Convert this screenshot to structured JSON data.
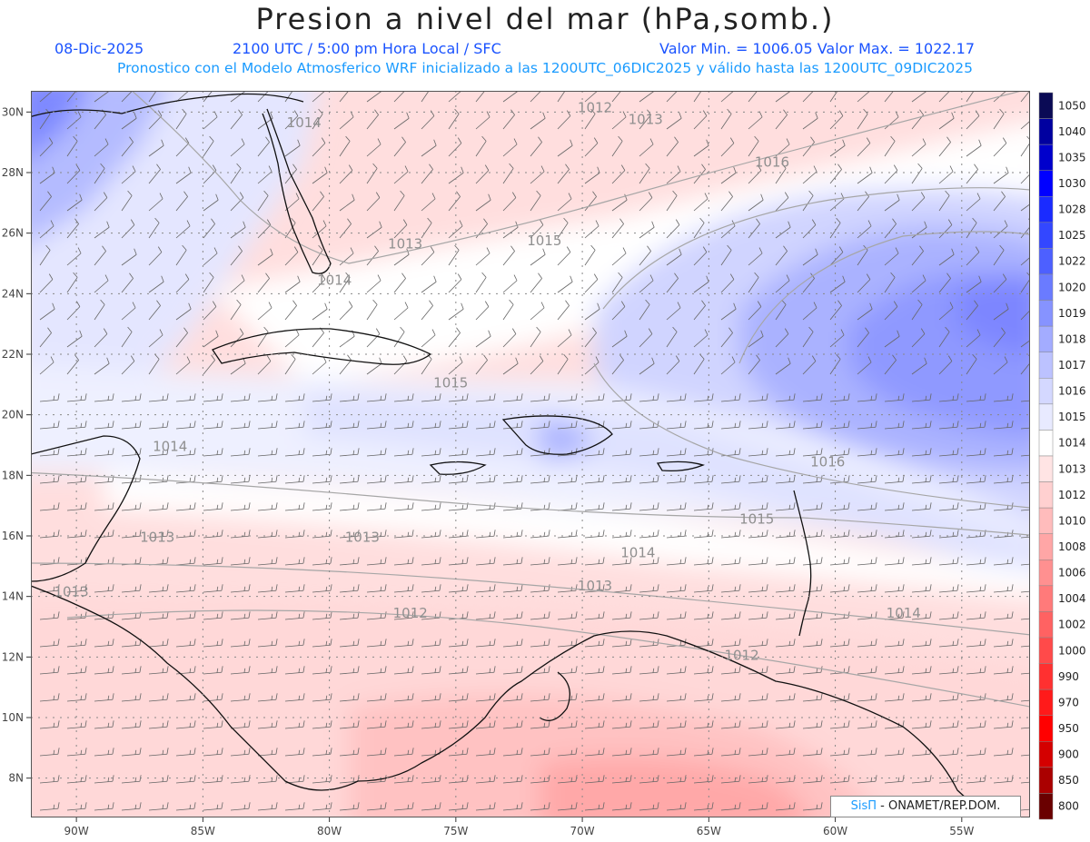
{
  "header": {
    "title": "Presion a nivel del mar (hPa,somb.)",
    "date": "08-Dic-2025",
    "time": "2100 UTC / 5:00 pm Hora Local / SFC",
    "minmax": "Valor Min. = 1006.05  Valor Max. = 1022.17",
    "model_note": "Pronostico con el Modelo Atmosferico WRF inicializado a las 1200UTC_06DIC2025 y válido hasta las  1200UTC_09DIC2025"
  },
  "axes": {
    "lat_labels": [
      "30N",
      "28N",
      "26N",
      "24N",
      "22N",
      "20N",
      "18N",
      "16N",
      "14N",
      "12N",
      "10N",
      "8N"
    ],
    "lon_labels": [
      "90W",
      "85W",
      "80W",
      "75W",
      "70W",
      "65W",
      "60W",
      "55W"
    ],
    "lat_range": [
      6.7,
      30.7
    ],
    "lon_range": [
      -91.8,
      -52.3
    ]
  },
  "isobars": [
    {
      "label": "1014",
      "lat": 29.5,
      "lon": -81.0
    },
    {
      "label": "1012",
      "lat": 30.0,
      "lon": -69.5
    },
    {
      "label": "1013",
      "lat": 29.6,
      "lon": -67.5
    },
    {
      "label": "1016",
      "lat": 28.2,
      "lon": -62.5
    },
    {
      "label": "1013",
      "lat": 25.5,
      "lon": -77.0
    },
    {
      "label": "1015",
      "lat": 25.6,
      "lon": -71.5
    },
    {
      "label": "1014",
      "lat": 24.3,
      "lon": -79.8
    },
    {
      "label": "1015",
      "lat": 20.9,
      "lon": -75.2
    },
    {
      "label": "1014",
      "lat": 18.8,
      "lon": -86.3
    },
    {
      "label": "1016",
      "lat": 18.3,
      "lon": -60.3
    },
    {
      "label": "1015",
      "lat": 16.4,
      "lon": -63.1
    },
    {
      "label": "1013",
      "lat": 15.8,
      "lon": -78.7
    },
    {
      "label": "1014",
      "lat": 15.3,
      "lon": -67.8
    },
    {
      "label": "1013",
      "lat": 15.8,
      "lon": -86.8
    },
    {
      "label": "1013",
      "lat": 14.2,
      "lon": -69.5
    },
    {
      "label": "1012",
      "lat": 13.3,
      "lon": -76.8
    },
    {
      "label": "1014",
      "lat": 13.3,
      "lon": -57.3
    },
    {
      "label": "1012",
      "lat": 11.9,
      "lon": -63.7
    },
    {
      "label": "1013",
      "lat": 14.0,
      "lon": -90.2
    }
  ],
  "colorbar": {
    "labels": [
      "1050",
      "1040",
      "1035",
      "1030",
      "1028",
      "1025",
      "1022",
      "1020",
      "1019",
      "1018",
      "1017",
      "1016",
      "1015",
      "1014",
      "1013",
      "1012",
      "1010",
      "1008",
      "1006",
      "1004",
      "1002",
      "1000",
      "990",
      "970",
      "950",
      "900",
      "850",
      "800"
    ],
    "colors": [
      "#0a0a55",
      "#0000a0",
      "#0000cc",
      "#0000ff",
      "#1a2bff",
      "#3347ff",
      "#4d60ff",
      "#6a7bff",
      "#8693ff",
      "#a3acff",
      "#bcc2ff",
      "#d4d8ff",
      "#e8eaff",
      "#ffffff",
      "#ffe4e4",
      "#ffd0d0",
      "#ffbcbc",
      "#ffa6a6",
      "#ff9090",
      "#ff7a7a",
      "#ff6262",
      "#ff4a4a",
      "#ff3030",
      "#ff1a1a",
      "#ff0000",
      "#d40000",
      "#aa0000",
      "#6a0000"
    ]
  },
  "credit": {
    "brand": "SisΠ",
    "text": " - ONAMET/REP.DOM."
  }
}
